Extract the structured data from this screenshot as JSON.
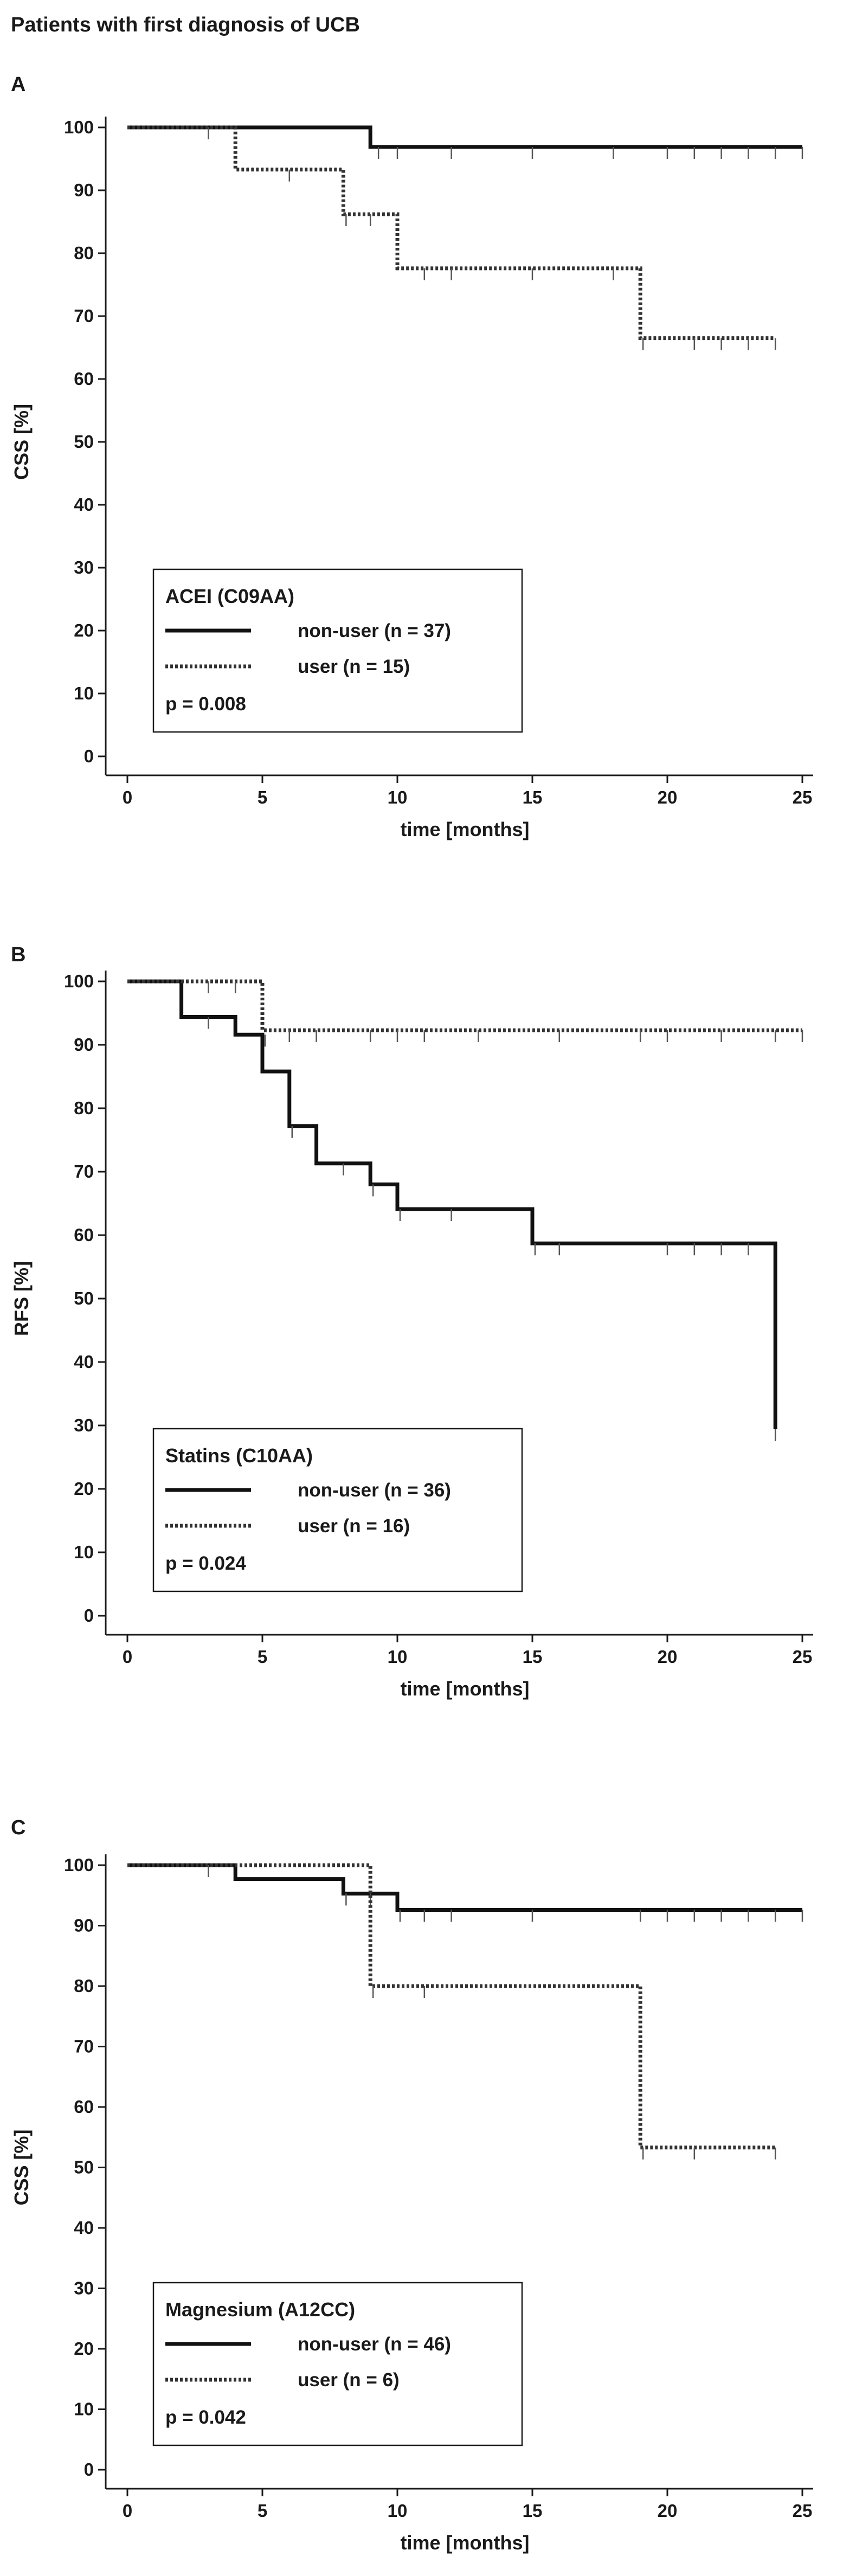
{
  "figure_title": "Patients with first diagnosis of UCB",
  "chart_data": [
    {
      "panel": "A",
      "type": "line",
      "subtype": "kaplan-meier",
      "xlabel": "time [months]",
      "ylabel": "CSS [%]",
      "xlim": [
        0,
        25
      ],
      "ylim": [
        0,
        100
      ],
      "xticks": [
        0,
        5,
        10,
        15,
        20,
        25
      ],
      "yticks": [
        0,
        10,
        20,
        30,
        40,
        50,
        60,
        70,
        80,
        90,
        100
      ],
      "legend": {
        "title": "ACEI (C09AA)",
        "p_value": "p = 0.008",
        "placement": "bottom-left"
      },
      "series": [
        {
          "name": "non-user (n = 37)",
          "style": "solid",
          "steps": [
            [
              0,
              100
            ],
            [
              9,
              96.9
            ],
            [
              25,
              96.9
            ]
          ],
          "censored": [
            [
              3,
              100
            ],
            [
              9.3,
              96.9
            ],
            [
              10,
              96.9
            ],
            [
              12,
              96.9
            ],
            [
              15,
              96.9
            ],
            [
              18,
              96.9
            ],
            [
              20,
              96.9
            ],
            [
              21,
              96.9
            ],
            [
              22,
              96.9
            ],
            [
              23,
              96.9
            ],
            [
              24,
              96.9
            ],
            [
              25,
              96.9
            ]
          ]
        },
        {
          "name": "user (n = 15)",
          "style": "dotted",
          "steps": [
            [
              0,
              100
            ],
            [
              4,
              93.3
            ],
            [
              8,
              86.2
            ],
            [
              10,
              77.6
            ],
            [
              19,
              66.5
            ],
            [
              24,
              66.5
            ]
          ],
          "censored": [
            [
              6,
              93.3
            ],
            [
              8.1,
              86.2
            ],
            [
              9,
              86.2
            ],
            [
              11,
              77.6
            ],
            [
              12,
              77.6
            ],
            [
              15,
              77.6
            ],
            [
              18,
              77.6
            ],
            [
              19.1,
              66.5
            ],
            [
              21,
              66.5
            ],
            [
              22,
              66.5
            ],
            [
              23,
              66.5
            ],
            [
              24,
              66.5
            ]
          ]
        }
      ]
    },
    {
      "panel": "B",
      "type": "line",
      "subtype": "kaplan-meier",
      "xlabel": "time [months]",
      "ylabel": "RFS [%]",
      "xlim": [
        0,
        25
      ],
      "ylim": [
        0,
        100
      ],
      "xticks": [
        0,
        5,
        10,
        15,
        20,
        25
      ],
      "yticks": [
        0,
        10,
        20,
        30,
        40,
        50,
        60,
        70,
        80,
        90,
        100
      ],
      "legend": {
        "title": "Statins (C10AA)",
        "p_value": "p = 0.024",
        "placement": "bottom-left"
      },
      "series": [
        {
          "name": "non-user (n = 36)",
          "style": "solid",
          "steps": [
            [
              0,
              100
            ],
            [
              2,
              94.4
            ],
            [
              4,
              91.6
            ],
            [
              5,
              85.8
            ],
            [
              6,
              77.2
            ],
            [
              7,
              71.3
            ],
            [
              9,
              68
            ],
            [
              10,
              64.1
            ],
            [
              15,
              58.7
            ],
            [
              24,
              29.4
            ]
          ],
          "censored": [
            [
              3,
              94.4
            ],
            [
              5.1,
              91.6
            ],
            [
              6.1,
              77.2
            ],
            [
              8,
              71.3
            ],
            [
              9.1,
              68
            ],
            [
              10.1,
              64.1
            ],
            [
              12,
              64.1
            ],
            [
              15.1,
              58.7
            ],
            [
              16,
              58.7
            ],
            [
              20,
              58.7
            ],
            [
              21,
              58.7
            ],
            [
              22,
              58.7
            ],
            [
              23,
              58.7
            ],
            [
              24,
              29.4
            ]
          ]
        },
        {
          "name": "user (n = 16)",
          "style": "dotted",
          "steps": [
            [
              0,
              100
            ],
            [
              5,
              92.3
            ],
            [
              25,
              92.3
            ]
          ],
          "censored": [
            [
              3,
              100
            ],
            [
              4,
              100
            ],
            [
              6,
              92.3
            ],
            [
              7,
              92.3
            ],
            [
              9,
              92.3
            ],
            [
              10,
              92.3
            ],
            [
              11,
              92.3
            ],
            [
              13,
              92.3
            ],
            [
              16,
              92.3
            ],
            [
              19,
              92.3
            ],
            [
              20,
              92.3
            ],
            [
              22,
              92.3
            ],
            [
              24,
              92.3
            ],
            [
              25,
              92.3
            ]
          ]
        }
      ]
    },
    {
      "panel": "C",
      "type": "line",
      "subtype": "kaplan-meier",
      "xlabel": "time [months]",
      "ylabel": "CSS [%]",
      "xlim": [
        0,
        25
      ],
      "ylim": [
        0,
        100
      ],
      "xticks": [
        0,
        5,
        10,
        15,
        20,
        25
      ],
      "yticks": [
        0,
        10,
        20,
        30,
        40,
        50,
        60,
        70,
        80,
        90,
        100
      ],
      "legend": {
        "title": "Magnesium (A12CC)",
        "p_value": "p = 0.042",
        "placement": "bottom-left"
      },
      "series": [
        {
          "name": "non-user (n = 46)",
          "style": "solid",
          "steps": [
            [
              0,
              100
            ],
            [
              4,
              97.7
            ],
            [
              8,
              95.3
            ],
            [
              10,
              92.6
            ],
            [
              25,
              92.6
            ]
          ],
          "censored": [
            [
              3,
              100
            ],
            [
              8.1,
              95.3
            ],
            [
              9,
              95.3
            ],
            [
              10.1,
              92.6
            ],
            [
              11,
              92.6
            ],
            [
              12,
              92.6
            ],
            [
              15,
              92.6
            ],
            [
              19,
              92.6
            ],
            [
              20,
              92.6
            ],
            [
              21,
              92.6
            ],
            [
              22,
              92.6
            ],
            [
              23,
              92.6
            ],
            [
              24,
              92.6
            ],
            [
              25,
              92.6
            ]
          ]
        },
        {
          "name": "user (n = 6)",
          "style": "dotted",
          "steps": [
            [
              0,
              100
            ],
            [
              9,
              80
            ],
            [
              19,
              53.3
            ],
            [
              24,
              53.3
            ]
          ],
          "censored": [
            [
              9.1,
              80
            ],
            [
              11,
              80
            ],
            [
              19.1,
              53.3
            ],
            [
              21,
              53.3
            ],
            [
              24,
              53.3
            ]
          ]
        }
      ]
    }
  ]
}
